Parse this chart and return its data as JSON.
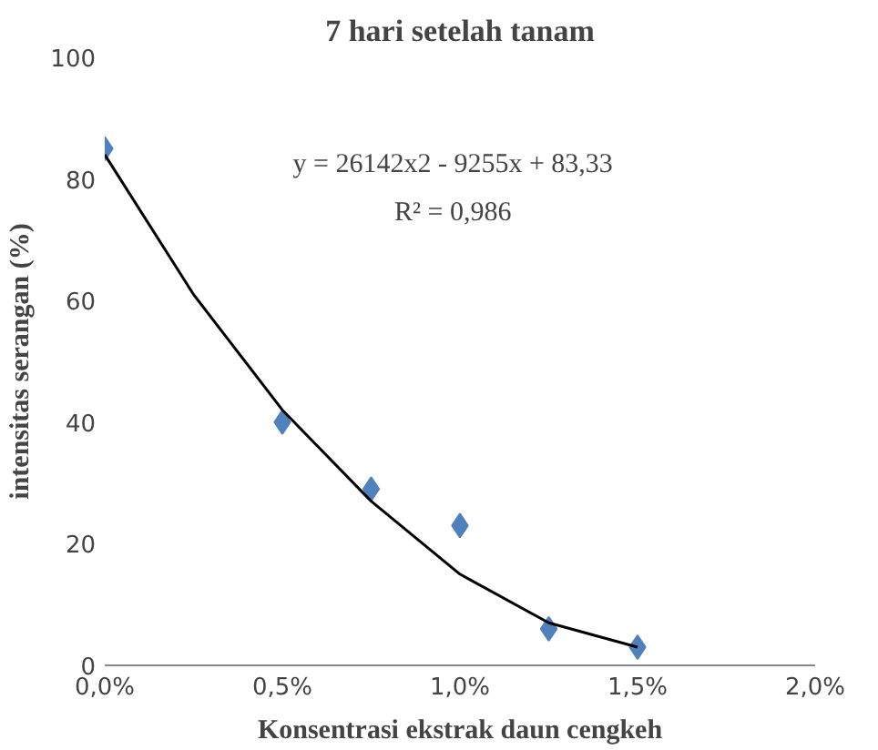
{
  "chart_data": {
    "type": "scatter",
    "title": "7 hari setelah tanam",
    "xlabel": "Konsentrasi ekstrak daun cengkeh",
    "ylabel": "intensitas serangan (%)",
    "annotations": [
      "y = 26142x2 - 9255x + 83,33",
      "R² = 0,986"
    ],
    "series": [
      {
        "color": "#4f81bd",
        "marker": "diamond",
        "x": [
          0,
          0.5,
          0.75,
          1.0,
          1.25,
          1.5
        ],
        "values": [
          85,
          40,
          29,
          23,
          6,
          3
        ]
      },
      {
        "type": "line",
        "color": "#000000",
        "line_style": "solid",
        "x": [
          0,
          0.25,
          0.5,
          0.75,
          1.0,
          1.25,
          1.5
        ],
        "values": [
          84,
          61,
          42,
          27,
          15,
          7,
          3
        ]
      }
    ],
    "xlim": [
      0,
      2
    ],
    "xticks": [
      {
        "value": 0,
        "label": "0,0%"
      },
      {
        "value": 0.5,
        "label": "0,5%"
      },
      {
        "value": 1,
        "label": "1,0%"
      },
      {
        "value": 1.5,
        "label": "1,5%"
      },
      {
        "value": 2,
        "label": "2,0%"
      }
    ],
    "ylim": [
      0,
      100
    ],
    "yticks": [
      0,
      20,
      40,
      60,
      80,
      100
    ],
    "grid": false
  }
}
